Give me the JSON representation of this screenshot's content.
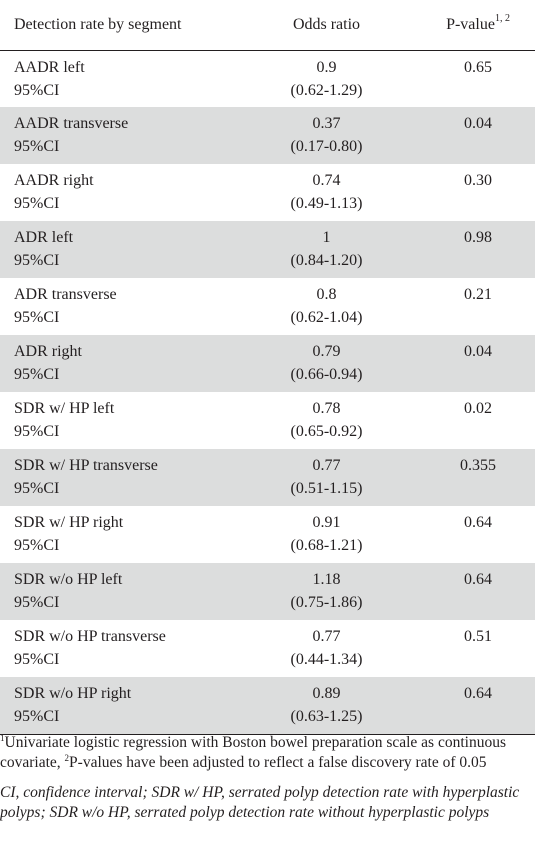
{
  "table": {
    "headers": {
      "segment": "Detection rate by segment",
      "odds_ratio": "Odds ratio",
      "p_value": "P-value",
      "p_value_sup": "1, 2"
    },
    "ci_label": "95%CI",
    "rows": [
      {
        "segment": "AADR left",
        "odds_ratio": "0.9",
        "ci": "(0.62-1.29)",
        "p_value": "0.65"
      },
      {
        "segment": "AADR transverse",
        "odds_ratio": "0.37",
        "ci": "(0.17-0.80)",
        "p_value": "0.04"
      },
      {
        "segment": "AADR right",
        "odds_ratio": "0.74",
        "ci": "(0.49-1.13)",
        "p_value": "0.30"
      },
      {
        "segment": "ADR left",
        "odds_ratio": "1",
        "ci": "(0.84-1.20)",
        "p_value": "0.98"
      },
      {
        "segment": "ADR transverse",
        "odds_ratio": "0.8",
        "ci": "(0.62-1.04)",
        "p_value": "0.21"
      },
      {
        "segment": "ADR right",
        "odds_ratio": "0.79",
        "ci": "(0.66-0.94)",
        "p_value": "0.04"
      },
      {
        "segment": "SDR w/ HP left",
        "odds_ratio": "0.78",
        "ci": "(0.65-0.92)",
        "p_value": "0.02"
      },
      {
        "segment": "SDR w/ HP transverse",
        "odds_ratio": "0.77",
        "ci": "(0.51-1.15)",
        "p_value": "0.355"
      },
      {
        "segment": "SDR w/ HP right",
        "odds_ratio": "0.91",
        "ci": "(0.68-1.21)",
        "p_value": "0.64"
      },
      {
        "segment": "SDR w/o HP left",
        "odds_ratio": "1.18",
        "ci": "(0.75-1.86)",
        "p_value": "0.64"
      },
      {
        "segment": "SDR w/o HP transverse",
        "odds_ratio": "0.77",
        "ci": "(0.44-1.34)",
        "p_value": "0.51"
      },
      {
        "segment": "SDR w/o HP right",
        "odds_ratio": "0.89",
        "ci": "(0.63-1.25)",
        "p_value": "0.64"
      }
    ]
  },
  "footnotes": {
    "note1_marker": "1",
    "note1_text": "Univariate logistic regression with Boston bowel preparation scale as continuous covariate, ",
    "note2_marker": "2",
    "note2_text": "P-values have been adjusted to reflect a false discovery rate of 0.05",
    "abbreviations": "CI, confidence interval; SDR w/ HP, serrated polyp detection rate with hyperplastic polyps; SDR w/o HP, serrated polyp detection rate without hyperplastic polyps"
  },
  "colors": {
    "row_shade": "#dcdddd",
    "text": "#231f20"
  }
}
